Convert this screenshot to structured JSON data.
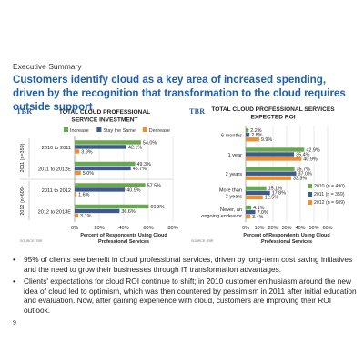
{
  "slide": {
    "section": "Executive Summary",
    "headline": "Customers identify cloud as a key area of increased spending, driven by the recognition that transformation to the cloud requires outside support",
    "page_number": "9",
    "logo_text": "TBR"
  },
  "bullets": [
    "95% of clients see benefit in cloud professional services, driven by long-term cost saving initiatives and the need to grow their businesses through IT transformation advantages.",
    "Clients' expectations for cloud ROI continue to shift; in 2010 customer enthusiasm around the new idea of cloud led to optimism, which was then countered by pessimism in 2011 after initial education and evaluation. Now, after gaining experience with cloud, customers are improving their ROI outlook."
  ],
  "chart_data": [
    {
      "type": "bar",
      "orientation": "horizontal",
      "title": "TOTAL CLOUD PROFESSIONAL SERVICE INVESTMENT",
      "title_lines": [
        "TOTAL CLOUD PROFESSIONAL",
        "SERVICE INVESTMENT"
      ],
      "xlabel": "Percent of Respondents Using Cloud Professional Services",
      "xlabel_lines": [
        "Percent of Respondents Using Cloud",
        "Professional Services"
      ],
      "xlim": [
        0,
        80
      ],
      "xticks": [
        0,
        20,
        40,
        60,
        80
      ],
      "xtick_labels": [
        "0%",
        "20%",
        "40%",
        "60%",
        "80%"
      ],
      "grid": true,
      "legend_position": "top",
      "source": "SOURCE: TBR",
      "categories": [
        "2010 to 2011",
        "2011 to 2012E",
        "2011 to 2012",
        "2012 to 2013E"
      ],
      "groups": [
        {
          "label": "2011 (n=359)",
          "categories": [
            "2010 to 2011",
            "2011 to 2012E"
          ]
        },
        {
          "label": "2012 (n=609)",
          "categories": [
            "2011 to 2012",
            "2012 to 2013E"
          ]
        }
      ],
      "series": [
        {
          "name": "Increase",
          "color": "#6aa84f",
          "values": [
            54.0,
            49.3,
            57.5,
            60.3
          ],
          "labels": [
            "54.0%",
            "49.3%",
            "57.5%",
            "60.3%"
          ]
        },
        {
          "name": "Stay the Same",
          "color": "#3d5a8c",
          "values": [
            42.1,
            45.7,
            40.9,
            36.6
          ],
          "labels": [
            "42.1%",
            "45.7%",
            "40.9%",
            "36.6%"
          ]
        },
        {
          "name": "Decrease",
          "color": "#e69138",
          "values": [
            3.9,
            5.0,
            1.6,
            3.1
          ],
          "labels": [
            "3.9%",
            "5.0%",
            "1.6%",
            "3.1%"
          ]
        }
      ]
    },
    {
      "type": "bar",
      "orientation": "horizontal",
      "title": "TOTAL CLOUD PROFESSIONAL SERVICES EXPECTED ROI",
      "title_lines": [
        "TOTAL CLOUD PROFESSIONAL SERVICES",
        "EXPECTED ROI"
      ],
      "xlabel": "Percent of Respondents Using Cloud Professional Services",
      "xlabel_lines": [
        "Percent of Respondents Using Cloud",
        "Professional Services"
      ],
      "xlim": [
        0,
        60
      ],
      "xticks": [
        0,
        10,
        20,
        30,
        40,
        50,
        60
      ],
      "xtick_labels": [
        "0%",
        "10%",
        "20%",
        "30%",
        "40%",
        "50%",
        "60%"
      ],
      "grid": true,
      "legend_position": "right",
      "source": "SOURCE: TBR",
      "categories": [
        "6 months",
        "1 year",
        "2 years",
        "More than 2 years",
        "Never, an ongoing endeavor"
      ],
      "category_lines": [
        [
          "6 months"
        ],
        [
          "1 year"
        ],
        [
          "2 years"
        ],
        [
          "More than",
          "2 years"
        ],
        [
          "Never, an",
          "ongoing endeavor"
        ]
      ],
      "series": [
        {
          "name": "2010 (n = 490)",
          "color": "#6aa84f",
          "values": [
            2.2,
            42.9,
            35.7,
            15.1,
            4.1
          ],
          "labels": [
            "2.2%",
            "42.9%",
            "35.7%",
            "15.1%",
            "4.1%"
          ]
        },
        {
          "name": "2011 (n = 359)",
          "color": "#3d5a8c",
          "values": [
            2.8,
            35.4,
            37.0,
            17.8,
            7.0
          ],
          "labels": [
            "2.8%",
            "35.4%",
            "37.0%",
            "17.8%",
            "7.0%"
          ]
        },
        {
          "name": "2012 (n = 609)",
          "color": "#e69138",
          "values": [
            9.9,
            40.9,
            33.3,
            12.5,
            3.4
          ],
          "labels": [
            "9.9%",
            "40.9%",
            "33.3%",
            "12.5%",
            "3.4%"
          ]
        }
      ]
    }
  ]
}
